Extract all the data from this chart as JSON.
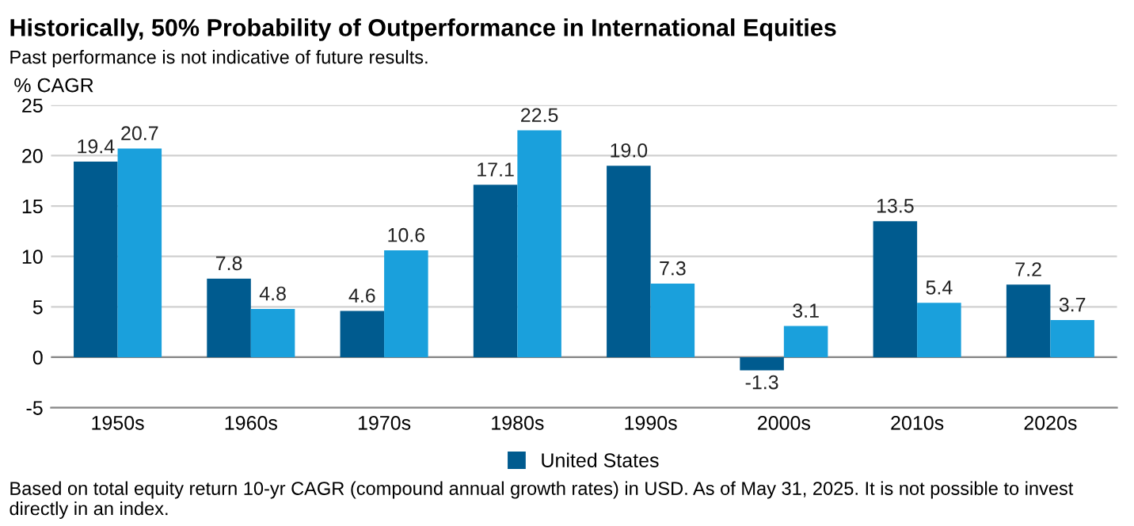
{
  "chart_data": {
    "type": "bar",
    "title": "Historically, 50% Probability of Outperformance in International Equities",
    "subtitle": "Past performance is not indicative of future results.",
    "ylabel": "% CAGR",
    "categories": [
      "1950s",
      "1960s",
      "1970s",
      "1980s",
      "1990s",
      "2000s",
      "2010s",
      "2020s"
    ],
    "series": [
      {
        "name": "United States",
        "color": "#005b8f",
        "values": [
          19.4,
          7.8,
          4.6,
          17.1,
          19.0,
          -1.3,
          13.5,
          7.2
        ],
        "value_labels": [
          "19.4",
          "7.8",
          "4.6",
          "17.1",
          "19.0",
          "-1.3",
          "13.5",
          "7.2"
        ]
      },
      {
        "color": "#1aa0dc",
        "values": [
          20.7,
          4.8,
          10.6,
          22.5,
          7.3,
          3.1,
          5.4,
          3.7
        ],
        "value_labels": [
          "20.7",
          "4.8",
          "10.6",
          "22.5",
          "7.3",
          "3.1",
          "5.4",
          "3.7"
        ]
      }
    ],
    "ylim": [
      -5,
      25
    ],
    "yticks": [
      -5,
      0,
      5,
      10,
      15,
      20,
      25
    ],
    "grid": "y",
    "legend": "bottom",
    "annotations": [
      "Based on total equity return 10-yr CAGR (compound annual growth rates) in USD. As of May 31, 2025. It is not possible to invest directly in an index."
    ]
  }
}
